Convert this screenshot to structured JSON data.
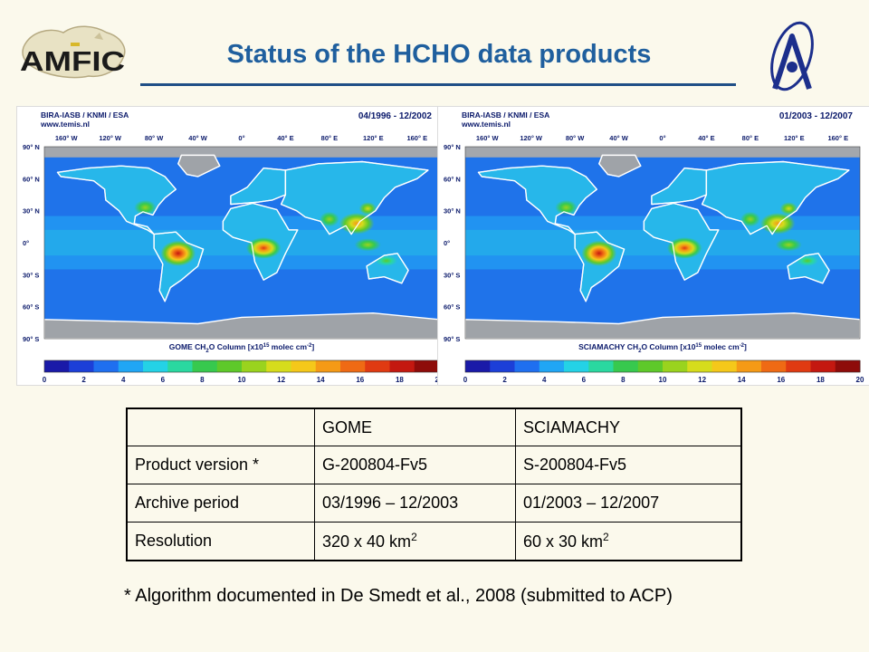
{
  "slide": {
    "title": "Status of the HCHO data products",
    "logo_left_text": "AMFIC",
    "footnote": "* Algorithm documented in De Smedt et al., 2008 (submitted to ACP)"
  },
  "maps": [
    {
      "org": "BIRA-IASB / KNMI / ESA",
      "site": "www.temis.nl",
      "period": "04/1996 - 12/2002",
      "caption_pre": "GOME CH",
      "caption_sub": "2",
      "caption_mid": "O Column [x10",
      "caption_sup1": "15",
      "caption_post": " molec cm",
      "caption_sup2": "-2",
      "caption_end": "]"
    },
    {
      "org": "BIRA-IASB / KNMI / ESA",
      "site": "www.temis.nl",
      "period": "01/2003 - 12/2007",
      "caption_pre": "SCIAMACHY CH",
      "caption_sub": "2",
      "caption_mid": "O Column [x10",
      "caption_sup1": "15",
      "caption_post": " molec cm",
      "caption_sup2": "-2",
      "caption_end": "]"
    }
  ],
  "lon_ticks": [
    "160° W",
    "120° W",
    "80° W",
    "40° W",
    "0°",
    "40° E",
    "80° E",
    "120° E",
    "160° E"
  ],
  "lat_ticks": [
    "90° N",
    "60° N",
    "30° N",
    "0°",
    "30° S",
    "60° S",
    "90° S"
  ],
  "colorbar_ticks": [
    "0",
    "2",
    "4",
    "6",
    "8",
    "10",
    "12",
    "14",
    "16",
    "18",
    "20"
  ],
  "colorbar_colors": [
    "#1a1aa8",
    "#1c3fd8",
    "#1f6ff0",
    "#20a6f5",
    "#24d2e6",
    "#2ad8a0",
    "#37c94e",
    "#5ec92a",
    "#9ad31e",
    "#d6dc1c",
    "#f5c81a",
    "#f59a16",
    "#ef6a14",
    "#e03a12",
    "#c41810",
    "#8e0c0a"
  ],
  "table": {
    "header": [
      "",
      "GOME",
      "SCIAMACHY"
    ],
    "rows": [
      {
        "label": "Product version *",
        "gome": "G-200804-Fv5",
        "scia": "S-200804-Fv5"
      },
      {
        "label": "Archive period",
        "gome": "03/1996 – 12/2003",
        "scia": "01/2003 – 12/2007"
      },
      {
        "label": "Resolution",
        "gome": "320 x 40  km",
        "gome_sup": "2",
        "scia": "60 x 30  km",
        "scia_sup": "2"
      }
    ]
  }
}
